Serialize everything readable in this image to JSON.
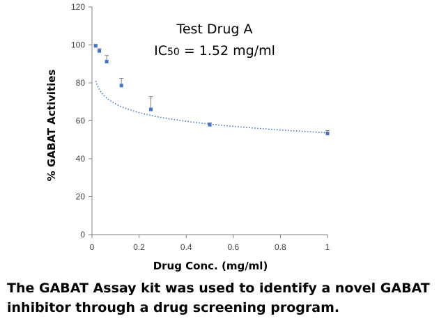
{
  "chart_data": {
    "type": "scatter",
    "xlabel": "Drug Conc. (mg/ml)",
    "ylabel": "% GABAT Activities",
    "xlim": [
      0,
      1
    ],
    "ylim": [
      0,
      120
    ],
    "xticks": [
      0,
      0.2,
      0.4,
      0.6,
      0.8,
      1
    ],
    "xtick_labels": [
      "0",
      "0.2",
      "0.4",
      "0.6",
      "0.8",
      "1"
    ],
    "yticks": [
      0,
      20,
      40,
      60,
      80,
      100,
      120
    ],
    "ytick_labels": [
      "0",
      "20",
      "40",
      "60",
      "80",
      "100",
      "120"
    ],
    "grid": false,
    "annotations": {
      "drug_name": "Test Drug A",
      "ic50_prefix": "IC",
      "ic50_sub": "50",
      "ic50_value": " = 1.52 mg/ml"
    },
    "points": [
      {
        "x": 0.0156,
        "y": 99.5,
        "err": 0.8
      },
      {
        "x": 0.03125,
        "y": 96.8,
        "err": 1.2
      },
      {
        "x": 0.0625,
        "y": 91.2,
        "err": 3.2
      },
      {
        "x": 0.125,
        "y": 78.6,
        "err": 3.8
      },
      {
        "x": 0.25,
        "y": 66.0,
        "err": 6.8
      },
      {
        "x": 0.5,
        "y": 57.9,
        "err": 1.0
      },
      {
        "x": 1.0,
        "y": 53.3,
        "err": 1.6
      }
    ],
    "fit": {
      "type": "logarithmic-trendline",
      "style": "dotted",
      "a": 53.7,
      "b": -6.6,
      "x_range": [
        0.016,
        1.0
      ]
    },
    "colors": {
      "marker": "#4472c4",
      "fit": "#4472c4",
      "axis": "#808080",
      "errorbar": "#7f7f7f"
    }
  },
  "caption": "The GABAT Assay kit was used to identify a novel GABAT inhibitor through a drug screening program."
}
